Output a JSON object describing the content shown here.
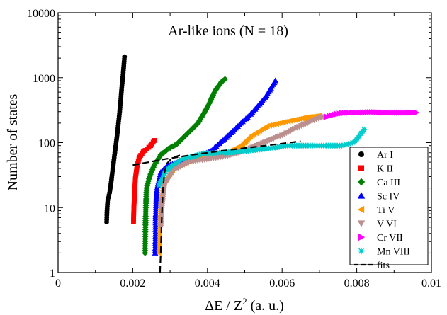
{
  "chart_data": {
    "type": "scatter",
    "title": "Ar-like ions (N = 18)",
    "xlabel_main": "ΔE / Z",
    "xlabel_sup": "2",
    "xlabel_unit": "(a. u.)",
    "ylabel": "Number of states",
    "xlim": [
      0,
      0.01
    ],
    "ylim": [
      1,
      10000
    ],
    "yscale": "log",
    "grid": false,
    "legend_position": "bottom-right",
    "x_ticks": [
      {
        "value": 0,
        "label": "0"
      },
      {
        "value": 0.002,
        "label": "0.002"
      },
      {
        "value": 0.004,
        "label": "0.004"
      },
      {
        "value": 0.006,
        "label": "0.006"
      },
      {
        "value": 0.008,
        "label": "0.008"
      },
      {
        "value": 0.01,
        "label": "0.01"
      }
    ],
    "y_ticks": [
      {
        "value": 1,
        "label": "1"
      },
      {
        "value": 10,
        "label": "10"
      },
      {
        "value": 100,
        "label": "100"
      },
      {
        "value": 1000,
        "label": "1000"
      },
      {
        "value": 10000,
        "label": "10000"
      }
    ],
    "series": [
      {
        "name": "Ar I",
        "marker": "circle",
        "color": "#000000",
        "anchors": [
          [
            0.0013,
            6
          ],
          [
            0.00131,
            9
          ],
          [
            0.00133,
            13
          ],
          [
            0.00138,
            17
          ],
          [
            0.00143,
            27
          ],
          [
            0.00147,
            42
          ],
          [
            0.00152,
            70
          ],
          [
            0.00158,
            130
          ],
          [
            0.00165,
            300
          ],
          [
            0.0017,
            650
          ],
          [
            0.00175,
            1300
          ],
          [
            0.00178,
            2100
          ]
        ]
      },
      {
        "name": "K II",
        "marker": "square",
        "color": "#ff0000",
        "anchors": [
          [
            0.00202,
            6
          ],
          [
            0.00203,
            10
          ],
          [
            0.00205,
            17
          ],
          [
            0.00207,
            28
          ],
          [
            0.00212,
            45
          ],
          [
            0.00218,
            60
          ],
          [
            0.00228,
            72
          ],
          [
            0.00238,
            80
          ],
          [
            0.00248,
            90
          ],
          [
            0.00258,
            108
          ]
        ]
      },
      {
        "name": "Ca III",
        "marker": "diamond",
        "color": "#008000",
        "anchors": [
          [
            0.00233,
            2
          ],
          [
            0.00234,
            5
          ],
          [
            0.00235,
            10
          ],
          [
            0.00237,
            20
          ],
          [
            0.00245,
            30
          ],
          [
            0.00258,
            45
          ],
          [
            0.00275,
            65
          ],
          [
            0.00295,
            80
          ],
          [
            0.00318,
            95
          ],
          [
            0.00345,
            135
          ],
          [
            0.00375,
            200
          ],
          [
            0.004,
            350
          ],
          [
            0.0042,
            620
          ],
          [
            0.00437,
            850
          ],
          [
            0.00447,
            950
          ]
        ]
      },
      {
        "name": "Sc IV",
        "marker": "triangle-up",
        "color": "#0000ff",
        "anchors": [
          [
            0.0026,
            2
          ],
          [
            0.00261,
            5
          ],
          [
            0.00262,
            10
          ],
          [
            0.00265,
            20
          ],
          [
            0.00275,
            35
          ],
          [
            0.00295,
            45
          ],
          [
            0.00335,
            52
          ],
          [
            0.00375,
            60
          ],
          [
            0.0041,
            75
          ],
          [
            0.0045,
            120
          ],
          [
            0.0049,
            200
          ],
          [
            0.0052,
            290
          ],
          [
            0.00555,
            500
          ],
          [
            0.00582,
            900
          ]
        ]
      },
      {
        "name": "Ti V",
        "marker": "triangle-left",
        "color": "#ff9900",
        "anchors": [
          [
            0.0027,
            2
          ],
          [
            0.00272,
            5
          ],
          [
            0.00275,
            12
          ],
          [
            0.00285,
            25
          ],
          [
            0.0031,
            40
          ],
          [
            0.0036,
            55
          ],
          [
            0.0041,
            62
          ],
          [
            0.0045,
            70
          ],
          [
            0.0049,
            90
          ],
          [
            0.0052,
            130
          ],
          [
            0.0056,
            180
          ],
          [
            0.0061,
            210
          ],
          [
            0.0066,
            240
          ],
          [
            0.007,
            260
          ]
        ]
      },
      {
        "name": "V VI",
        "marker": "triangle-down",
        "color": "#bc8f8f",
        "anchors": [
          [
            0.00275,
            5
          ],
          [
            0.00278,
            10
          ],
          [
            0.00285,
            22
          ],
          [
            0.0031,
            38
          ],
          [
            0.0035,
            50
          ],
          [
            0.0041,
            57
          ],
          [
            0.0046,
            63
          ],
          [
            0.0051,
            80
          ],
          [
            0.0056,
            105
          ],
          [
            0.006,
            130
          ],
          [
            0.0064,
            170
          ],
          [
            0.0068,
            215
          ],
          [
            0.0071,
            250
          ]
        ]
      },
      {
        "name": "Cr VII",
        "marker": "triangle-right",
        "color": "#ff00ff",
        "anchors": [
          [
            0.0072,
            250
          ],
          [
            0.0074,
            270
          ],
          [
            0.0076,
            285
          ],
          [
            0.00785,
            290
          ],
          [
            0.0081,
            290
          ],
          [
            0.0084,
            295
          ],
          [
            0.0087,
            290
          ],
          [
            0.0096,
            290
          ]
        ]
      },
      {
        "name": "Mn VIII",
        "marker": "star",
        "color": "#00cccc",
        "anchors": [
          [
            0.0027,
            22
          ],
          [
            0.0029,
            38
          ],
          [
            0.0033,
            55
          ],
          [
            0.0039,
            68
          ],
          [
            0.0048,
            72
          ],
          [
            0.0057,
            82
          ],
          [
            0.00615,
            90
          ],
          [
            0.0076,
            90
          ],
          [
            0.0079,
            100
          ],
          [
            0.00805,
            120
          ],
          [
            0.00812,
            140
          ],
          [
            0.0082,
            160
          ]
        ]
      },
      {
        "name": "fits",
        "marker": "dashed-line",
        "color": "#000000",
        "segments": [
          [
            [
              0.002,
              45
            ],
            [
              0.0028,
              55
            ],
            [
              0.0036,
              65
            ],
            [
              0.0044,
              75
            ],
            [
              0.0052,
              85
            ],
            [
              0.0065,
              105
            ]
          ],
          [
            [
              0.00273,
              1
            ],
            [
              0.00276,
              3
            ],
            [
              0.00278,
              8
            ],
            [
              0.00281,
              20
            ],
            [
              0.00285,
              35
            ],
            [
              0.00292,
              48
            ],
            [
              0.00305,
              58
            ],
            [
              0.0033,
              65
            ]
          ]
        ]
      }
    ]
  }
}
